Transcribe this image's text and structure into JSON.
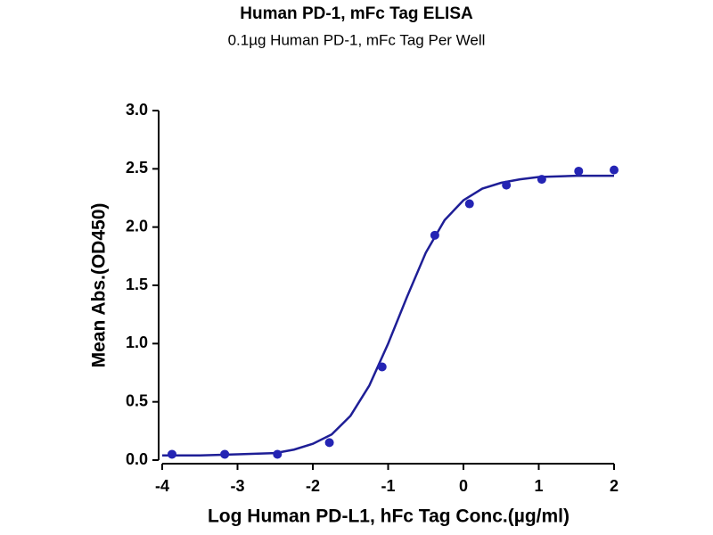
{
  "chart_data": {
    "type": "scatter",
    "title": "Human PD-1, mFc Tag ELISA",
    "subtitle": "0.1µg Human PD-1, mFc Tag Per Well",
    "x_label": "Log Human PD-L1, hFc Tag Conc.(µg/ml)",
    "y_label": "Mean Abs.(OD450)",
    "xlim": [
      -4,
      2
    ],
    "xticks": [
      -4,
      -3,
      -2,
      -1,
      0,
      1,
      2
    ],
    "ylim": [
      0,
      3
    ],
    "yticks": [
      {
        "value": 0,
        "label": "0.0"
      },
      0.5,
      {
        "value": 1,
        "label": "1.0"
      },
      1.5,
      {
        "value": 2,
        "label": "2.0"
      },
      2.5,
      {
        "value": 3,
        "label": "3.0"
      }
    ],
    "points": {
      "color": "#2424b4",
      "x": [
        -3.87,
        -3.17,
        -2.47,
        -1.78,
        -1.08,
        -0.38,
        0.08,
        0.57,
        1.04,
        1.53,
        2.0
      ],
      "values": [
        0.05,
        0.05,
        0.05,
        0.15,
        0.8,
        1.93,
        2.2,
        2.36,
        2.41,
        2.48,
        2.49
      ]
    },
    "fit": {
      "color": "#1e1e96",
      "x": [
        -4,
        -3.5,
        -3,
        -2.5,
        -2.25,
        -2,
        -1.75,
        -1.5,
        -1.25,
        -1,
        -0.75,
        -0.5,
        -0.25,
        0,
        0.25,
        0.5,
        0.75,
        1,
        1.5,
        2
      ],
      "values": [
        0.04,
        0.04,
        0.05,
        0.06,
        0.09,
        0.14,
        0.22,
        0.38,
        0.64,
        1.0,
        1.4,
        1.78,
        2.06,
        2.23,
        2.33,
        2.38,
        2.41,
        2.43,
        2.44,
        2.44
      ]
    }
  }
}
